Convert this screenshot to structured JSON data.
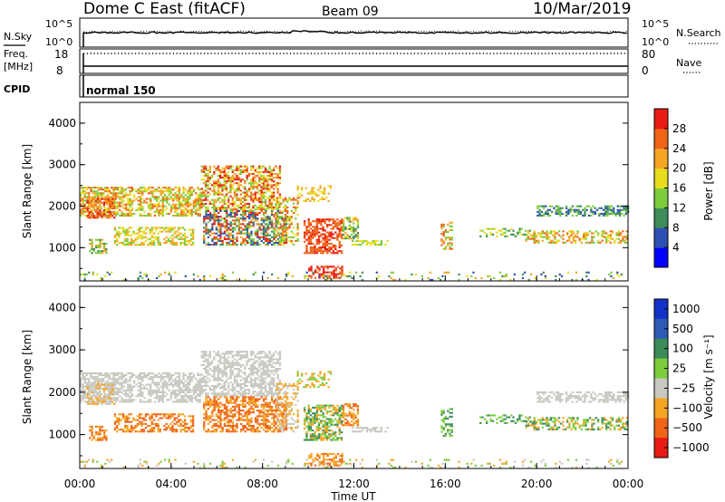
{
  "header": {
    "title": "Dome C East (fitACF)",
    "beam": "Beam 09",
    "date": "10/Mar/2019"
  },
  "sky_panel": {
    "left_label": "N.Sky",
    "right_label": "N.Search",
    "left_ticks": [
      "10^5",
      "10^0"
    ],
    "right_ticks": [
      "10^5",
      "10^0"
    ]
  },
  "freq_panel": {
    "left_label_line1": "Freq.",
    "left_label_line2": "[MHz]",
    "right_label": "Nave",
    "left_ticks": [
      "18",
      "8"
    ],
    "right_ticks": [
      "80",
      "0"
    ],
    "freq_value": 10.5,
    "nave_value": 80
  },
  "cpid_panel": {
    "label": "CPID",
    "mode_text": "normal 150"
  },
  "chart_data": [
    {
      "type": "heatmap",
      "name": "power",
      "ylabel": "Slant Range [km]",
      "yticks": [
        "1000",
        "2000",
        "3000",
        "4000"
      ],
      "ylim": [
        200,
        4500
      ],
      "colorbar_label": "Power [dB]",
      "colorbar_ticks": [
        "4",
        "8",
        "12",
        "16",
        "20",
        "24",
        "28"
      ],
      "colors": [
        "#0000ff",
        "#2c4fb4",
        "#3e8c5a",
        "#7ccc3c",
        "#e7dc1c",
        "#f5a524",
        "#f06418",
        "#e81c12"
      ]
    },
    {
      "type": "heatmap",
      "name": "velocity",
      "ylabel": "Slant Range [km]",
      "yticks": [
        "1000",
        "2000",
        "3000",
        "4000"
      ],
      "ylim": [
        200,
        4500
      ],
      "colorbar_label": "Velocity [m s⁻¹]",
      "colorbar_ticks": [
        "1000",
        "500",
        "100",
        "25",
        "−25",
        "−100",
        "−500",
        "−1000"
      ],
      "colors": [
        "#1432c8",
        "#2c5ab4",
        "#3c8c5a",
        "#7ccc3c",
        "#c8c8c0",
        "#f5a524",
        "#f06418",
        "#e81c12"
      ]
    }
  ],
  "x_axis": {
    "label": "Time UT",
    "ticks": [
      "00:00",
      "04:00",
      "08:00",
      "12:00",
      "16:00",
      "20:00",
      "00:00"
    ],
    "range_hours": [
      0,
      24
    ]
  },
  "echo_regions": [
    {
      "t0": 0.0,
      "t1": 5.3,
      "r0": 1750,
      "r1": 2450,
      "p": 0.62,
      "pw": [
        3,
        4,
        5,
        6
      ],
      "vel": [
        4
      ]
    },
    {
      "t0": 0.3,
      "t1": 1.5,
      "r0": 1700,
      "r1": 2200,
      "p": 0.65,
      "pw": [
        5,
        6,
        7
      ],
      "vel": [
        4,
        5
      ]
    },
    {
      "t0": 0.4,
      "t1": 1.2,
      "r0": 850,
      "r1": 1200,
      "p": 0.55,
      "pw": [
        2,
        3,
        5
      ],
      "vel": [
        5,
        6
      ]
    },
    {
      "t0": 1.5,
      "t1": 5.0,
      "r0": 1050,
      "r1": 1500,
      "p": 0.55,
      "pw": [
        3,
        4,
        5
      ],
      "vel": [
        5,
        6
      ]
    },
    {
      "t0": 5.3,
      "t1": 8.8,
      "r0": 1900,
      "r1": 2950,
      "p": 0.6,
      "pw": [
        3,
        4,
        5,
        6,
        7
      ],
      "vel": [
        4
      ]
    },
    {
      "t0": 5.4,
      "t1": 9.0,
      "r0": 1050,
      "r1": 1900,
      "p": 0.6,
      "pw": [
        1,
        2,
        3,
        5,
        6,
        7
      ],
      "vel": [
        5,
        6,
        6
      ]
    },
    {
      "t0": 8.6,
      "t1": 9.5,
      "r0": 1050,
      "r1": 2200,
      "p": 0.45,
      "pw": [
        3,
        4,
        6
      ],
      "vel": [
        4,
        5
      ]
    },
    {
      "t0": 9.5,
      "t1": 11.0,
      "r0": 2100,
      "r1": 2500,
      "p": 0.35,
      "pw": [
        4,
        5
      ],
      "vel": [
        3,
        5
      ]
    },
    {
      "t0": 9.8,
      "t1": 11.5,
      "r0": 850,
      "r1": 1700,
      "p": 0.65,
      "pw": [
        6,
        7,
        6
      ],
      "vel": [
        2,
        3,
        5
      ]
    },
    {
      "t0": 11.5,
      "t1": 12.2,
      "r0": 1200,
      "r1": 1700,
      "p": 0.55,
      "pw": [
        2,
        3,
        4,
        5
      ],
      "vel": [
        5,
        6
      ]
    },
    {
      "t0": 11.9,
      "t1": 13.5,
      "r0": 1050,
      "r1": 1150,
      "p": 0.45,
      "pw": [
        3,
        4
      ],
      "vel": [
        4
      ]
    },
    {
      "t0": 10.0,
      "t1": 11.5,
      "r0": 250,
      "r1": 550,
      "p": 0.55,
      "pw": [
        7,
        6
      ],
      "vel": [
        5,
        6
      ]
    },
    {
      "t0": 15.8,
      "t1": 16.3,
      "r0": 950,
      "r1": 1600,
      "p": 0.45,
      "pw": [
        3,
        5,
        6
      ],
      "vel": [
        2,
        3
      ]
    },
    {
      "t0": 17.5,
      "t1": 19.8,
      "r0": 1250,
      "r1": 1450,
      "p": 0.4,
      "pw": [
        2,
        3,
        4
      ],
      "vel": [
        2,
        3
      ]
    },
    {
      "t0": 19.5,
      "t1": 24.0,
      "r0": 1100,
      "r1": 1400,
      "p": 0.5,
      "pw": [
        3,
        4,
        5,
        6
      ],
      "vel": [
        2,
        3,
        5
      ]
    },
    {
      "t0": 20.0,
      "t1": 24.0,
      "r0": 1750,
      "r1": 2000,
      "p": 0.5,
      "pw": [
        1,
        2,
        3
      ],
      "vel": [
        4
      ]
    },
    {
      "t0": 0.0,
      "t1": 24.0,
      "r0": 200,
      "r1": 420,
      "p": 0.12,
      "pw": [
        1,
        2,
        3,
        4,
        5
      ],
      "vel": [
        4,
        5,
        3
      ]
    }
  ]
}
